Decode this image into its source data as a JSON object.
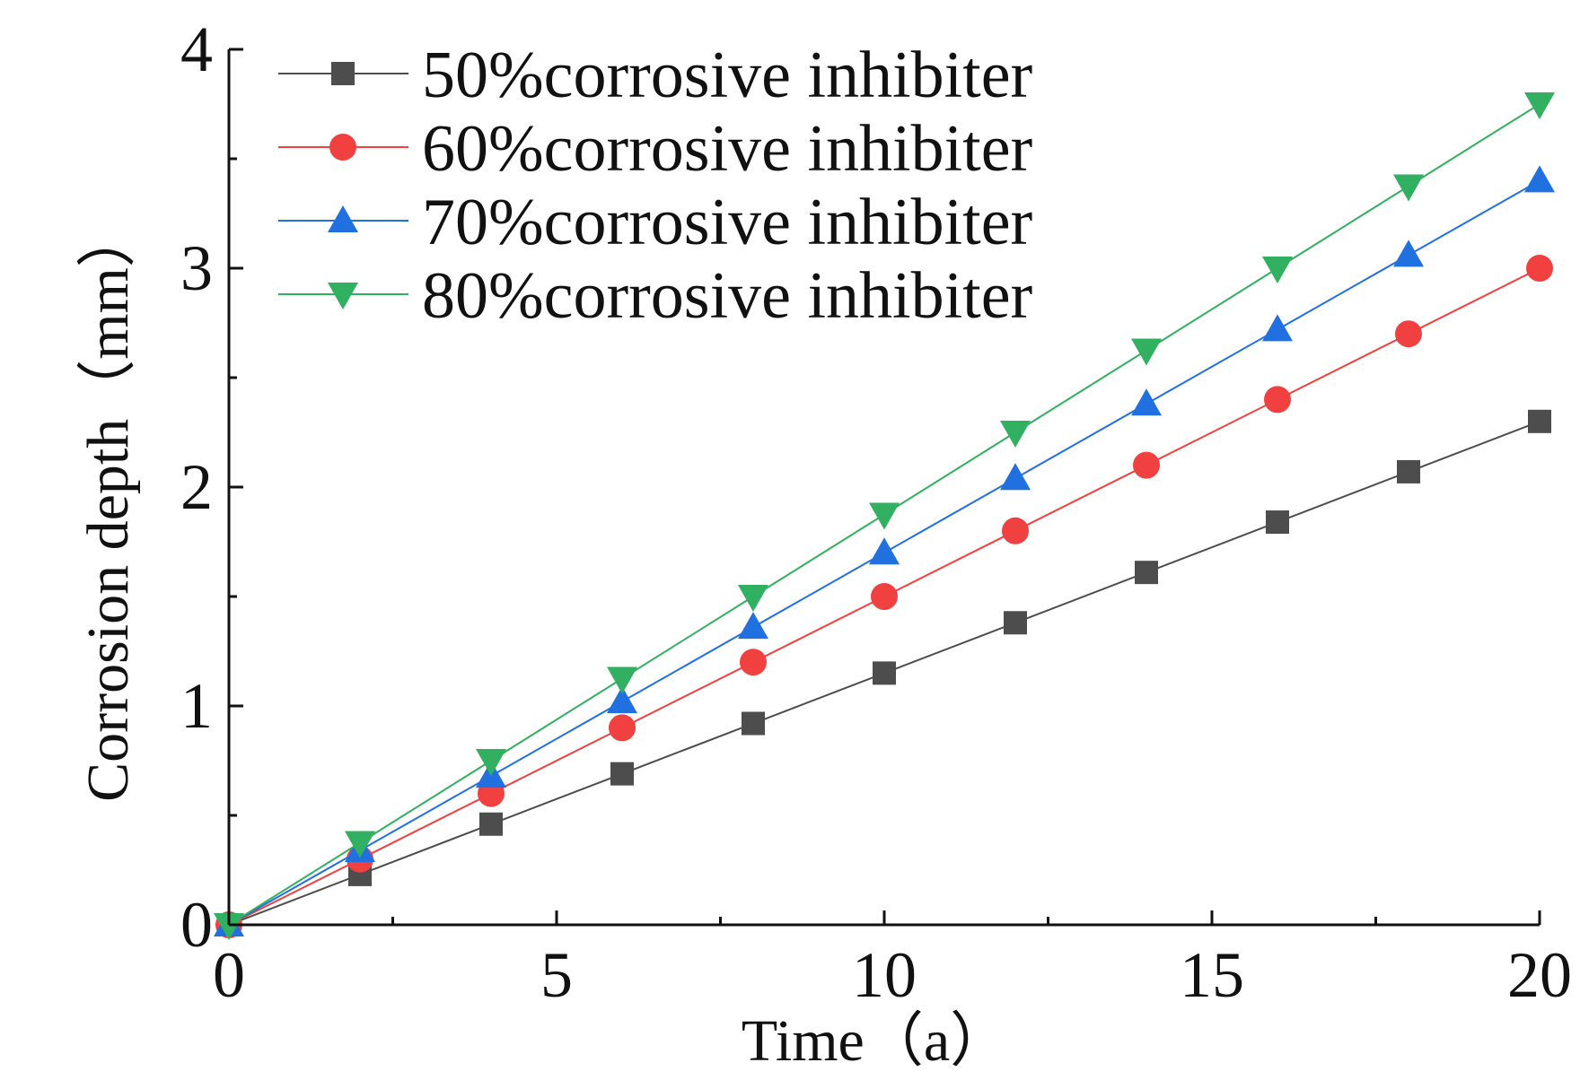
{
  "chart_data": {
    "type": "line",
    "title": "",
    "xlabel": "Time（a）",
    "ylabel": "Corrosion depth（mm）",
    "xlim": [
      0,
      20
    ],
    "ylim": [
      0,
      4
    ],
    "xticks": [
      0,
      5,
      10,
      15,
      20
    ],
    "yticks": [
      0,
      1,
      2,
      3,
      4
    ],
    "xtick_labels": [
      "0",
      "5",
      "10",
      "15",
      "20"
    ],
    "ytick_labels": [
      "0",
      "1",
      "2",
      "3",
      "4"
    ],
    "grid": false,
    "legend_position": "top-left",
    "x": [
      0,
      2,
      4,
      6,
      8,
      10,
      12,
      14,
      16,
      18,
      20
    ],
    "series": [
      {
        "name": "50%corrosive inhibiter",
        "color": "#4d4d4d",
        "marker": "square",
        "values": [
          0,
          0.23,
          0.46,
          0.69,
          0.92,
          1.15,
          1.38,
          1.61,
          1.84,
          2.07,
          2.3
        ]
      },
      {
        "name": "60%corrosive inhibiter",
        "color": "#f04040",
        "marker": "circle",
        "values": [
          0,
          0.3,
          0.6,
          0.9,
          1.2,
          1.5,
          1.8,
          2.1,
          2.4,
          2.7,
          3.0
        ]
      },
      {
        "name": "70%corrosive inhibiter",
        "color": "#2070e0",
        "marker": "triangle-up",
        "values": [
          0,
          0.34,
          0.68,
          1.02,
          1.36,
          1.7,
          2.04,
          2.38,
          2.72,
          3.06,
          3.4
        ]
      },
      {
        "name": "80%corrosive inhibiter",
        "color": "#30b060",
        "marker": "triangle-down",
        "values": [
          0,
          0.375,
          0.75,
          1.125,
          1.5,
          1.875,
          2.25,
          2.625,
          3.0,
          3.375,
          3.75
        ]
      }
    ]
  }
}
